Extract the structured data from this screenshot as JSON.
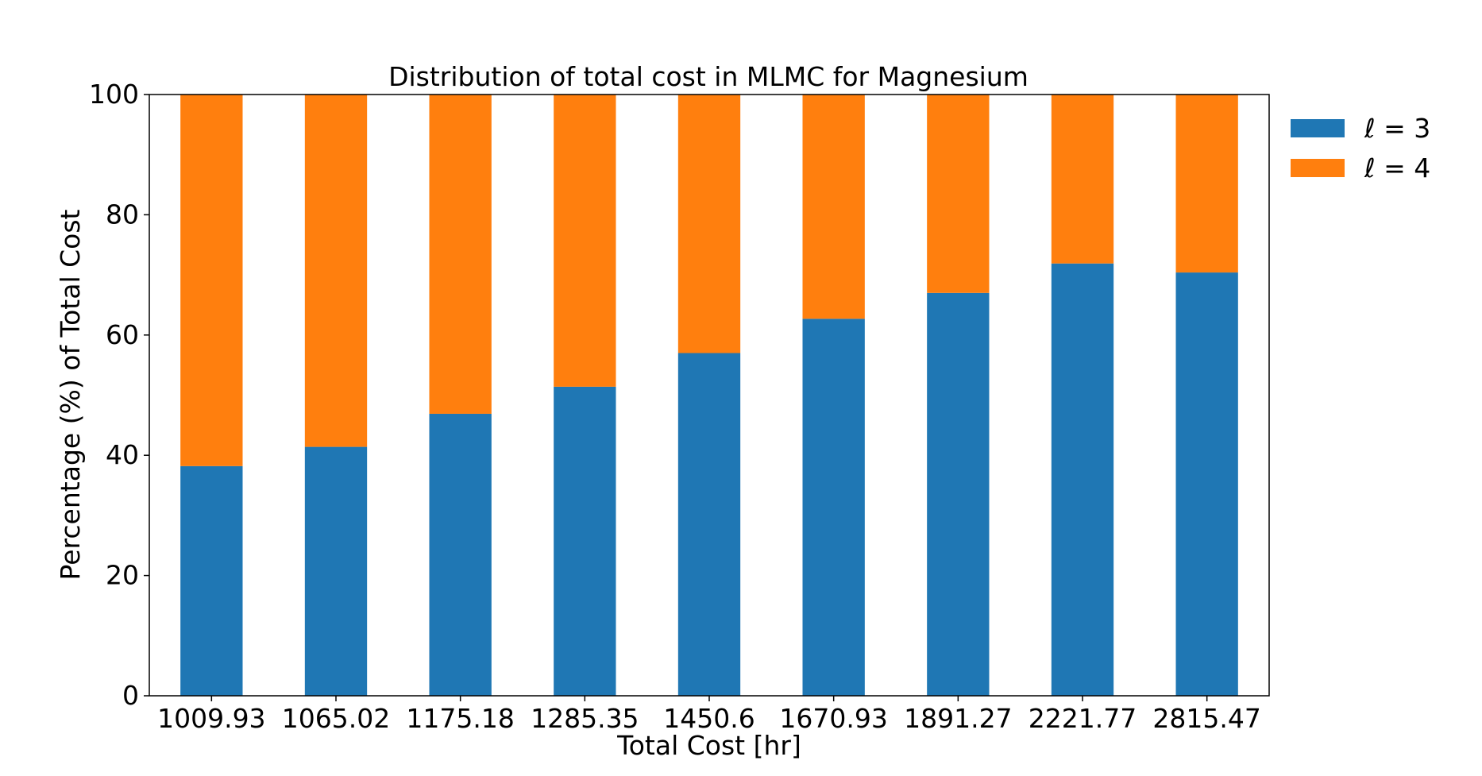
{
  "chart_data": {
    "type": "bar",
    "stacked": true,
    "title": "Distribution of total cost in MLMC for Magnesium",
    "xlabel": "Total Cost [hr]",
    "ylabel": "Percentage (%) of Total Cost",
    "categories": [
      "1009.93",
      "1065.02",
      "1175.18",
      "1285.35",
      "1450.6",
      "1670.93",
      "1891.27",
      "2221.77",
      "2815.47"
    ],
    "ylim": [
      0,
      100
    ],
    "yticks": [
      "0",
      "20",
      "40",
      "60",
      "80",
      "100"
    ],
    "series": [
      {
        "name": "ℓ = 3",
        "color": "#1f77b4",
        "values": [
          38.2,
          41.4,
          46.9,
          51.4,
          57.0,
          62.7,
          67.0,
          71.9,
          70.4
        ]
      },
      {
        "name": "ℓ = 4",
        "color": "#ff7f0e",
        "values": [
          61.8,
          58.6,
          53.1,
          48.6,
          43.0,
          37.3,
          33.0,
          28.1,
          29.6
        ]
      }
    ],
    "grid": false,
    "legend_position": "outside-top-right"
  }
}
